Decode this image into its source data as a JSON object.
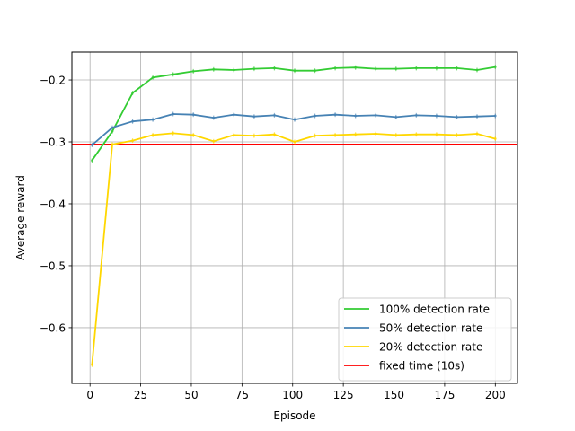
{
  "chart_data": {
    "type": "line",
    "title": "",
    "xlabel": "Episode",
    "ylabel": "Average reward",
    "xlim": [
      -8.95,
      210.95
    ],
    "ylim": [
      -0.69,
      -0.155
    ],
    "xticks": [
      0,
      25,
      50,
      75,
      100,
      125,
      150,
      175,
      200
    ],
    "xtick_labels": [
      "0",
      "25",
      "50",
      "75",
      "100",
      "125",
      "150",
      "175",
      "200"
    ],
    "yticks": [
      -0.6,
      -0.5,
      -0.4,
      -0.3,
      -0.2
    ],
    "ytick_labels": [
      "−0.6",
      "−0.5",
      "−0.4",
      "−0.3",
      "−0.2"
    ],
    "grid": true,
    "legend_position": "lower-right",
    "x": [
      1,
      11,
      21,
      31,
      41,
      51,
      61,
      71,
      81,
      91,
      101,
      111,
      121,
      131,
      141,
      151,
      161,
      171,
      181,
      191,
      200
    ],
    "series": [
      {
        "name": "100% detection rate",
        "color": "#33cc33",
        "values": [
          -0.33,
          -0.283,
          -0.221,
          -0.196,
          -0.191,
          -0.186,
          -0.183,
          -0.184,
          -0.182,
          -0.181,
          -0.185,
          -0.185,
          -0.181,
          -0.18,
          -0.182,
          -0.182,
          -0.181,
          -0.181,
          -0.181,
          -0.184,
          -0.179
        ]
      },
      {
        "name": "50% detection rate",
        "color": "#4682b4",
        "values": [
          -0.305,
          -0.277,
          -0.267,
          -0.264,
          -0.255,
          -0.256,
          -0.261,
          -0.256,
          -0.259,
          -0.257,
          -0.264,
          -0.258,
          -0.256,
          -0.258,
          -0.257,
          -0.26,
          -0.257,
          -0.258,
          -0.26,
          -0.259,
          -0.258
        ]
      },
      {
        "name": "20% detection rate",
        "color": "#ffd700",
        "values": [
          -0.66,
          -0.304,
          -0.298,
          -0.289,
          -0.286,
          -0.289,
          -0.299,
          -0.289,
          -0.29,
          -0.288,
          -0.3,
          -0.29,
          -0.289,
          -0.288,
          -0.287,
          -0.289,
          -0.288,
          -0.288,
          -0.289,
          -0.287,
          -0.295
        ]
      }
    ],
    "reference_lines": [
      {
        "name": "fixed time (10s)",
        "color": "#ff0000",
        "y": -0.304
      }
    ]
  }
}
